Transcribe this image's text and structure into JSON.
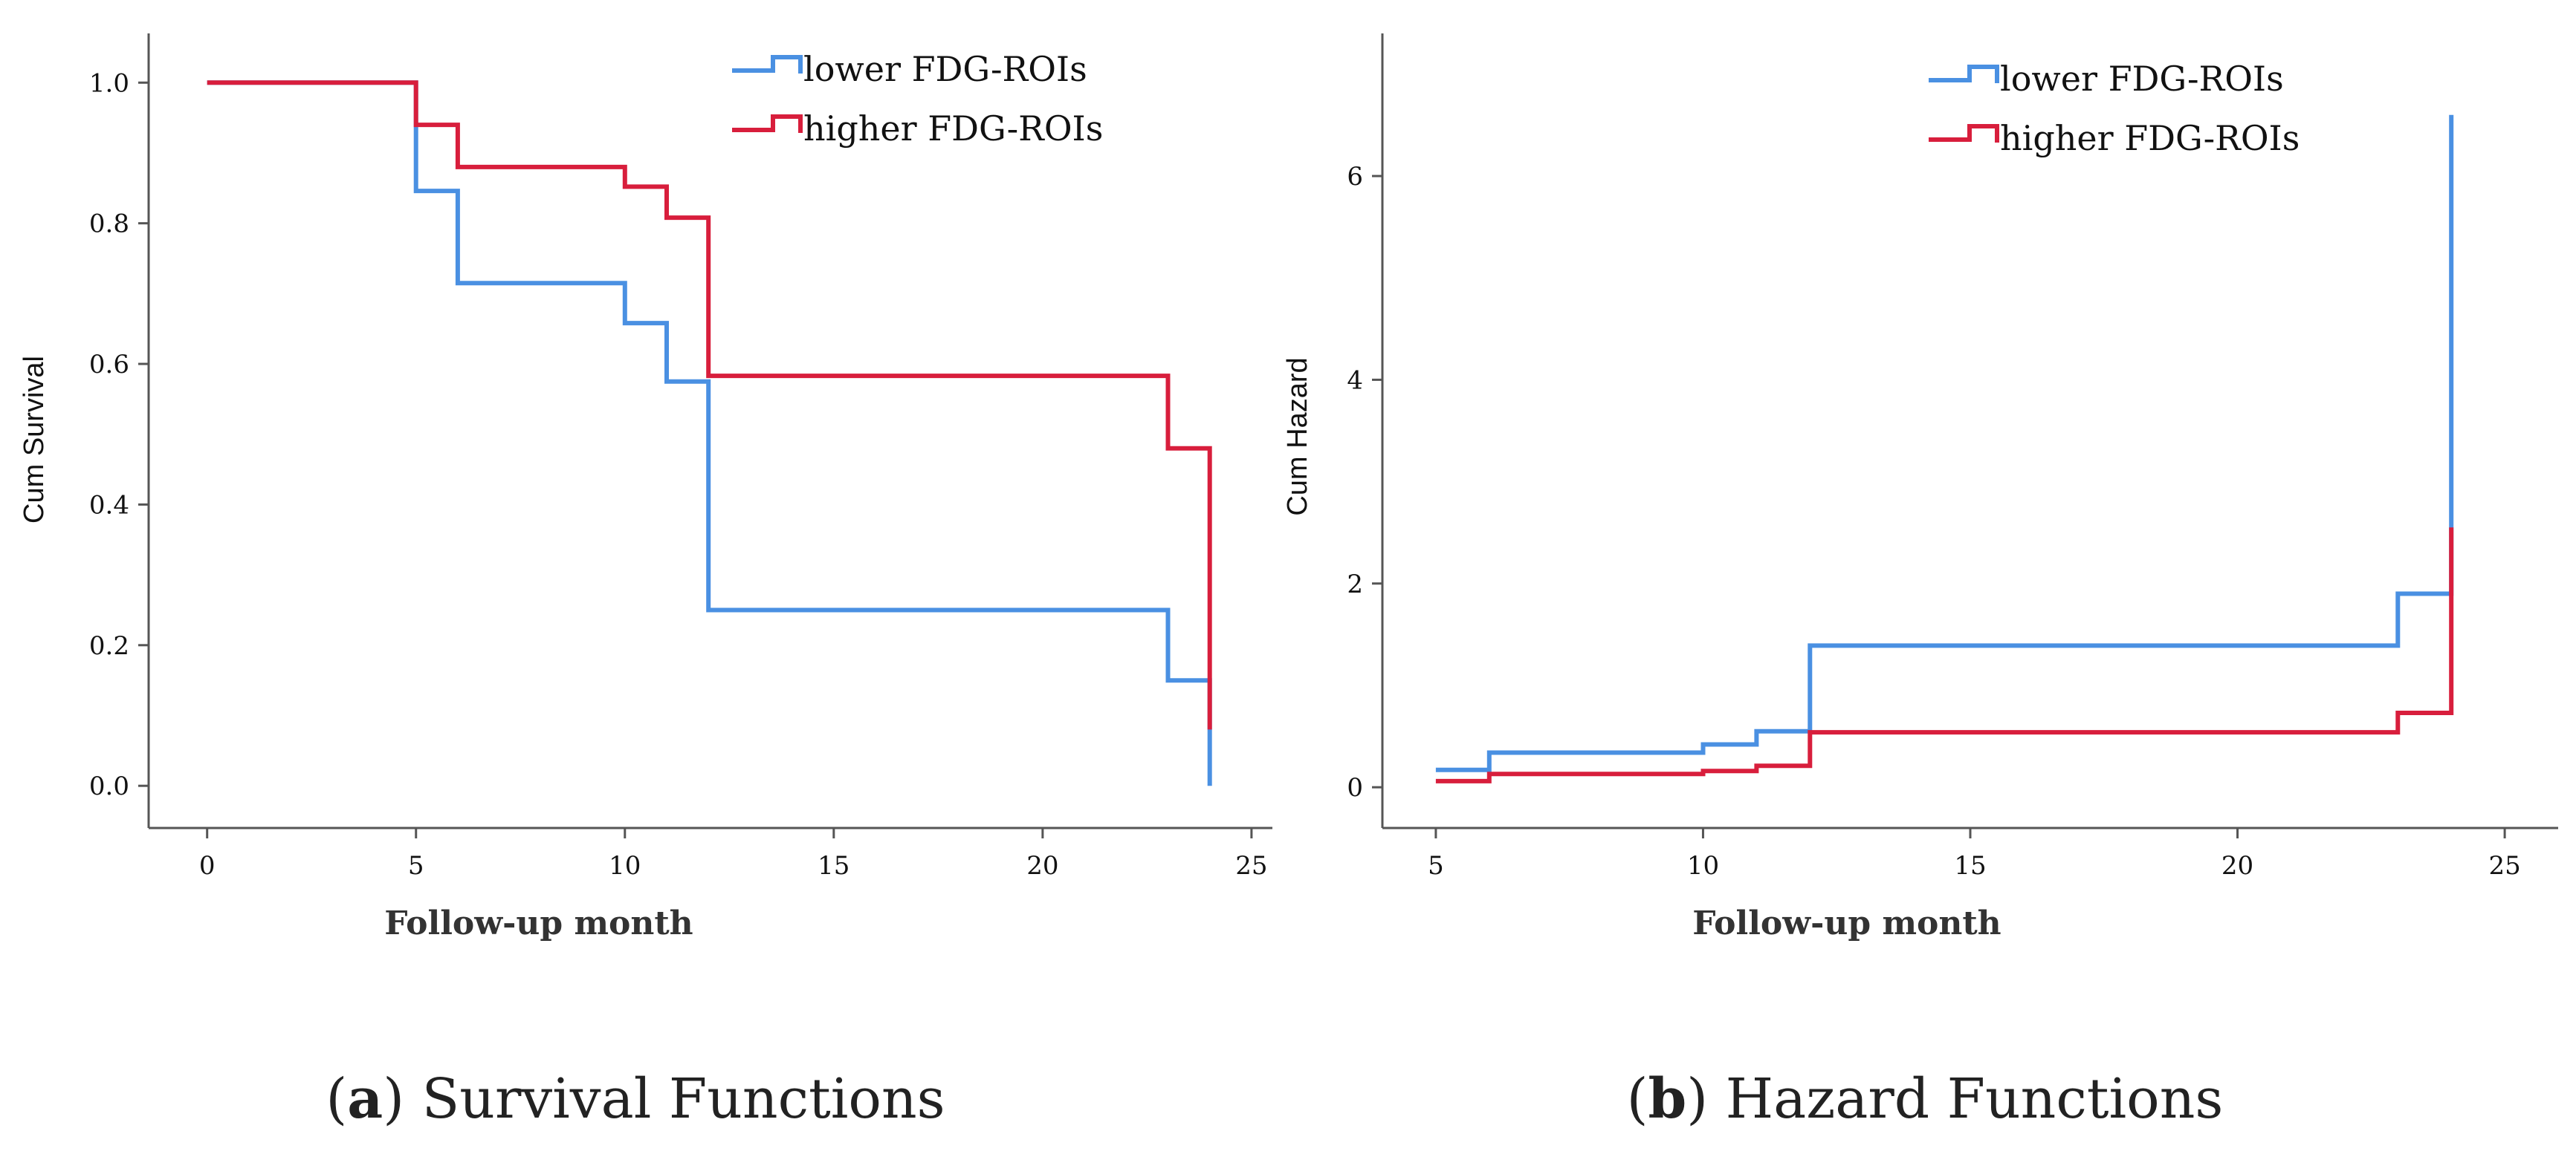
{
  "chart_data": [
    {
      "type": "line",
      "step": true,
      "caption_letter": "a",
      "caption_text": " Survival Functions",
      "xlabel": "Follow-up month",
      "ylabel": "Cum Survival",
      "xlim": [
        -1.4,
        25.5
      ],
      "ylim": [
        -0.06,
        1.07
      ],
      "xticks": [
        0,
        5,
        10,
        15,
        20,
        25
      ],
      "yticks": [
        0.0,
        0.2,
        0.4,
        0.6,
        0.8,
        1.0
      ],
      "ytick_labels": [
        "0.0",
        "0.2",
        "0.4",
        "0.6",
        "0.8",
        "1.0"
      ],
      "legend_position": "top-right",
      "series": [
        {
          "name": "lower FDG-ROIs",
          "color": "#4a90e2",
          "x": [
            0,
            5,
            5,
            6,
            6,
            10,
            10,
            11,
            11,
            12,
            12,
            23,
            23,
            24,
            24
          ],
          "y": [
            1.0,
            1.0,
            0.846,
            0.846,
            0.715,
            0.715,
            0.658,
            0.658,
            0.575,
            0.575,
            0.25,
            0.25,
            0.15,
            0.15,
            0.0
          ]
        },
        {
          "name": "higher FDG-ROIs",
          "color": "#d81e3c",
          "x": [
            0,
            5,
            5,
            6,
            6,
            10,
            10,
            11,
            11,
            12,
            12,
            23,
            23,
            24,
            24
          ],
          "y": [
            1.0,
            1.0,
            0.94,
            0.94,
            0.88,
            0.88,
            0.852,
            0.852,
            0.808,
            0.808,
            0.583,
            0.583,
            0.48,
            0.48,
            0.08
          ]
        }
      ]
    },
    {
      "type": "line",
      "step": true,
      "caption_letter": "b",
      "caption_text": " Hazard Functions",
      "xlabel": "Follow-up month",
      "ylabel": "Cum Hazard",
      "xlim": [
        4.0,
        26.0
      ],
      "ylim": [
        -0.4,
        7.4
      ],
      "xticks": [
        5,
        10,
        15,
        20,
        25
      ],
      "yticks": [
        0,
        2,
        4,
        6
      ],
      "ytick_labels": [
        "0",
        "2",
        "4",
        "6"
      ],
      "legend_position": "top-right",
      "series": [
        {
          "name": "lower FDG-ROIs",
          "color": "#4a90e2",
          "x": [
            5,
            6,
            6,
            10,
            10,
            11,
            11,
            12,
            12,
            23,
            23,
            24,
            24
          ],
          "y": [
            0.17,
            0.17,
            0.34,
            0.34,
            0.42,
            0.42,
            0.55,
            0.55,
            1.39,
            1.39,
            1.9,
            1.9,
            6.6
          ]
        },
        {
          "name": "higher FDG-ROIs",
          "color": "#d81e3c",
          "x": [
            5,
            6,
            6,
            10,
            10,
            11,
            11,
            12,
            12,
            23,
            23,
            24,
            24
          ],
          "y": [
            0.06,
            0.06,
            0.13,
            0.13,
            0.16,
            0.16,
            0.21,
            0.21,
            0.54,
            0.54,
            0.73,
            0.73,
            2.55
          ]
        }
      ]
    }
  ]
}
